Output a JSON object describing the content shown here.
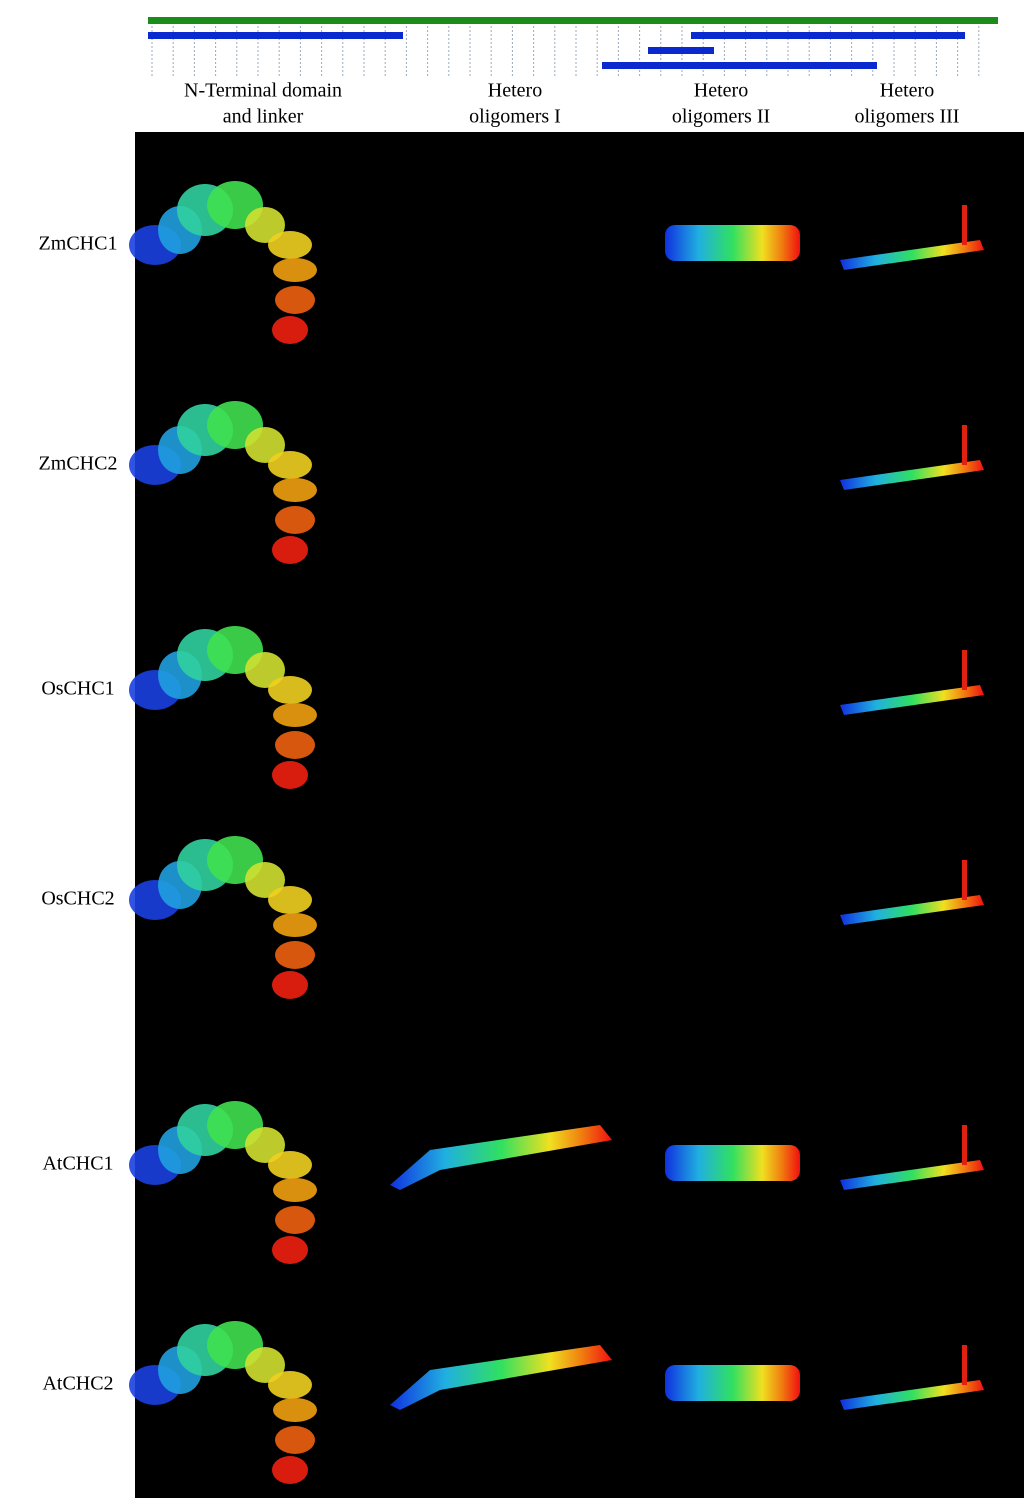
{
  "header": {
    "columns": [
      {
        "lines": [
          "N-Terminal domain",
          "and linker"
        ]
      },
      {
        "lines": [
          "Hetero",
          "oligomers I"
        ]
      },
      {
        "lines": [
          "Hetero",
          "oligomers II"
        ]
      },
      {
        "lines": [
          "Hetero",
          "oligomers III"
        ]
      }
    ]
  },
  "rows": [
    "ZmCHC1",
    "ZmCHC2",
    "OsCHC1",
    "OsCHC2",
    "AtCHC1",
    "AtCHC2"
  ]
}
